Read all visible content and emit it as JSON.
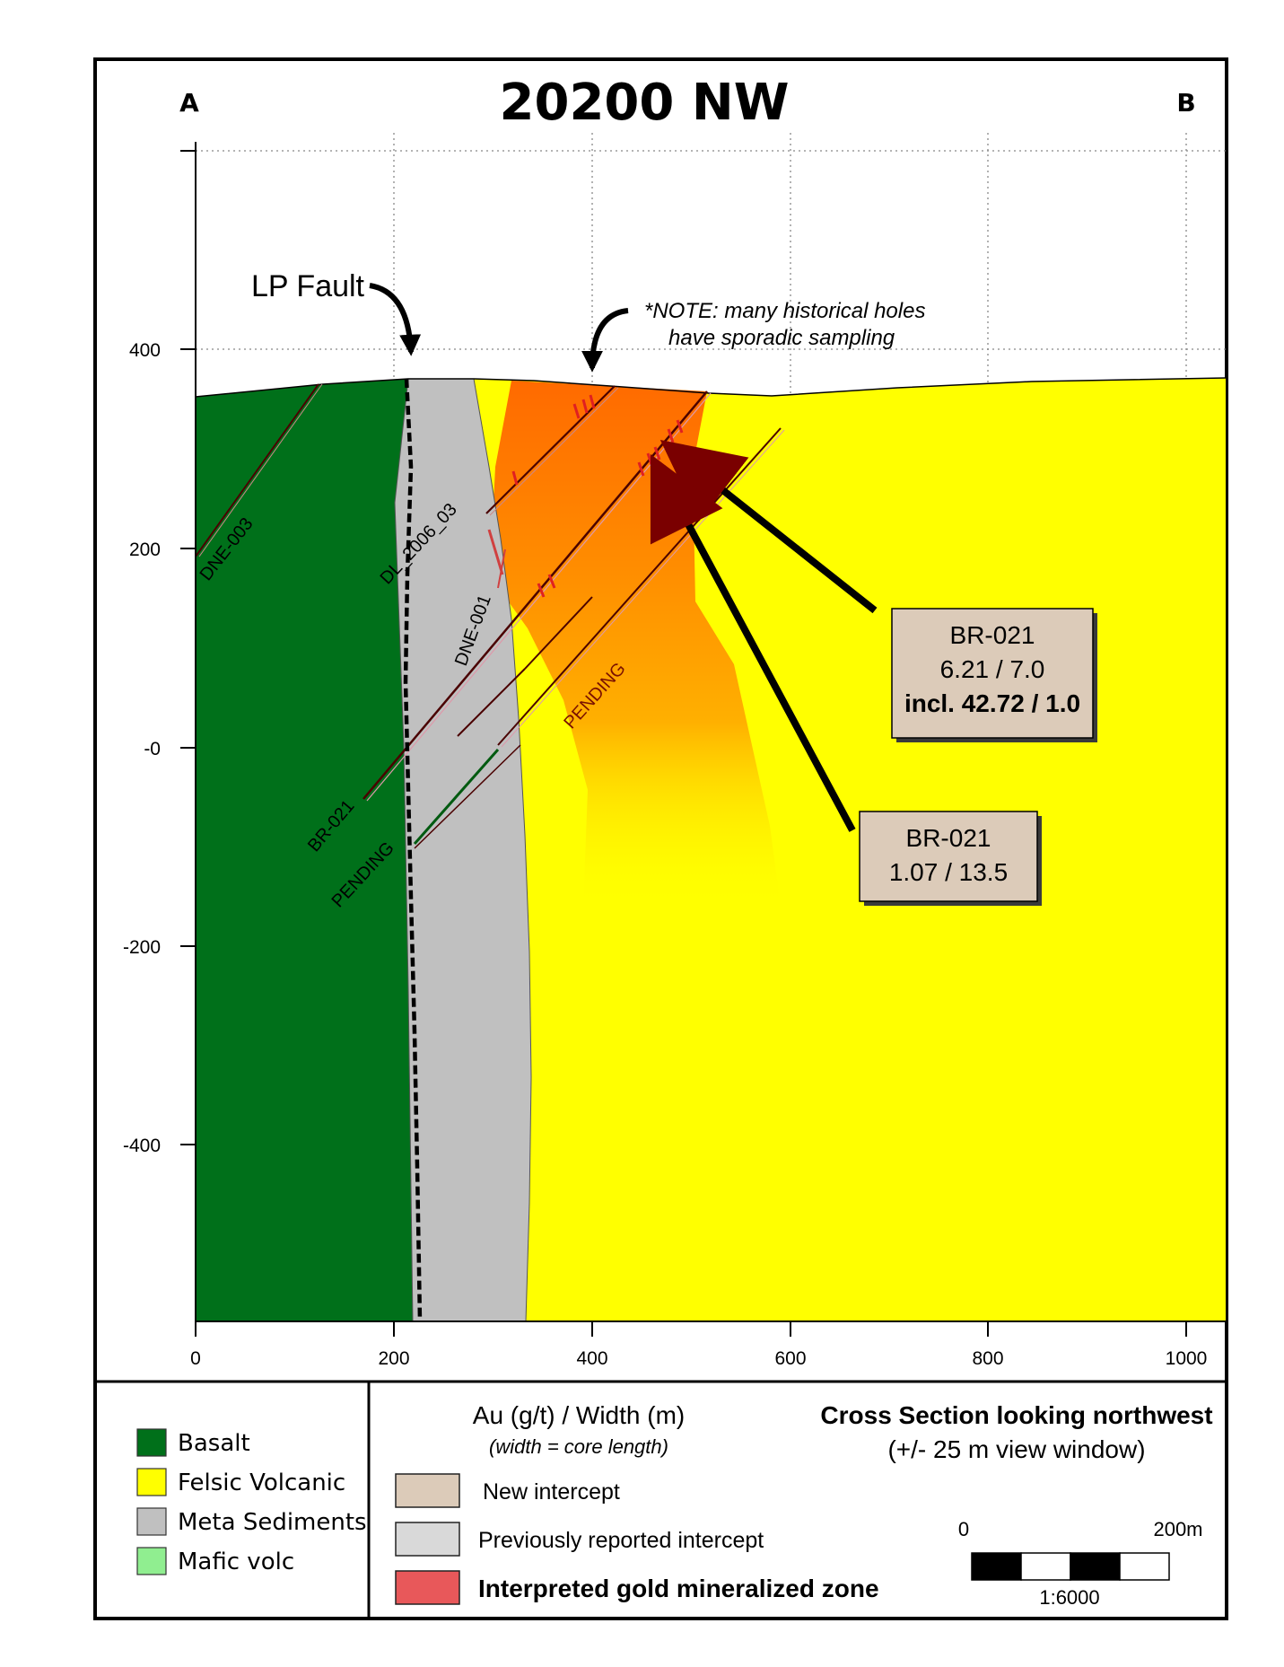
{
  "title": "20200 NW",
  "section_start_label": "A",
  "section_end_label": "B",
  "x_axis_ticks": [
    "0",
    "200",
    "400",
    "600",
    "800",
    "1000"
  ],
  "y_axis_ticks": [
    "400",
    "200",
    "-0",
    "-200",
    "-400"
  ],
  "fault_label": "LP Fault",
  "note": {
    "line1": "*NOTE: many historical holes",
    "line2": "have sporadic sampling"
  },
  "drill_holes": {
    "dne_003": "DNE-003",
    "dl_2006_03": "DL_2006_03",
    "dne_001": "DNE-001",
    "br_021": "BR-021",
    "pending_upper": "PENDING",
    "pending_lower": "PENDING"
  },
  "callouts": {
    "upper": {
      "hole": "BR-021",
      "grade_width": "6.21 / 7.0",
      "included": "incl. 42.72 / 1.0"
    },
    "lower": {
      "hole": "BR-021",
      "grade_width": "1.07 / 13.5"
    }
  },
  "legend": {
    "units": [
      {
        "label": "Basalt",
        "color": "#00701a"
      },
      {
        "label": "Felsic Volcanic",
        "color": "#ffff00"
      },
      {
        "label": "Meta Sediments",
        "color": "#c0c0c0"
      },
      {
        "label": "Mafic volc",
        "color": "#90ee90"
      }
    ],
    "intercept_heading": "Au (g/t) / Width (m)",
    "intercept_subheading": "(width = core length)",
    "intercepts": [
      {
        "label": "New intercept",
        "color": "#dccbb9"
      },
      {
        "label": "Previously reported  intercept",
        "color": "#d9d9d9"
      },
      {
        "label": "Interpreted gold mineralized zone",
        "color": "#e8585a"
      }
    ]
  },
  "section_info": {
    "heading": "Cross Section looking northwest",
    "window": "(+/- 25 m view window)"
  },
  "scale_bar": {
    "start": "0",
    "end": "200m",
    "ratio": "1:6000"
  }
}
